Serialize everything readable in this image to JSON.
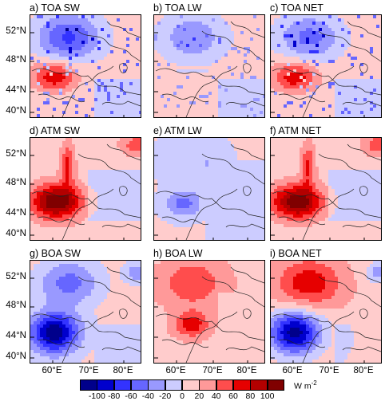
{
  "chart_data": {
    "type": "heatmap",
    "panels": [
      {
        "id": "toa-sw",
        "title": "a) TOA SW",
        "pattern": "noisy-north-red-southwest"
      },
      {
        "id": "toa-lw",
        "title": "b) TOA LW",
        "pattern": "weak-noise"
      },
      {
        "id": "toa-net",
        "title": "c) TOA NET",
        "pattern": "noisy-north-red-southwest"
      },
      {
        "id": "atm-sw",
        "title": "d) ATM SW",
        "pattern": "strong-positive-southwest"
      },
      {
        "id": "atm-lw",
        "title": "e) ATM LW",
        "pattern": "blue-southwest"
      },
      {
        "id": "atm-net",
        "title": "f) ATM NET",
        "pattern": "strong-positive-southwest"
      },
      {
        "id": "boa-sw",
        "title": "g) BOA SW",
        "pattern": "strong-negative-southwest"
      },
      {
        "id": "boa-lw",
        "title": "h) BOA LW",
        "pattern": "red-southwest"
      },
      {
        "id": "boa-net",
        "title": "i) BOA NET",
        "pattern": "strong-negative-southwest"
      }
    ],
    "latitude_ticks": [
      "52°N",
      "48°N",
      "44°N",
      "40°N"
    ],
    "longitude_ticks": [
      "60°E",
      "70°E",
      "80°E"
    ],
    "colorbar": {
      "levels": [
        -100,
        -80,
        -60,
        -40,
        -20,
        0,
        20,
        40,
        60,
        80,
        100
      ],
      "labels": [
        "-100",
        "-80",
        "-60",
        "-40",
        "-20",
        "0",
        "20",
        "40",
        "60",
        "80",
        "100"
      ],
      "colors": [
        "#00008b",
        "#0000cd",
        "#3333ff",
        "#6666ff",
        "#9999ff",
        "#ccccff",
        "#ffcccc",
        "#ff9999",
        "#ff4d4d",
        "#e60000",
        "#b30000",
        "#800000"
      ],
      "units": "W m",
      "units_superscript": "-2"
    }
  }
}
